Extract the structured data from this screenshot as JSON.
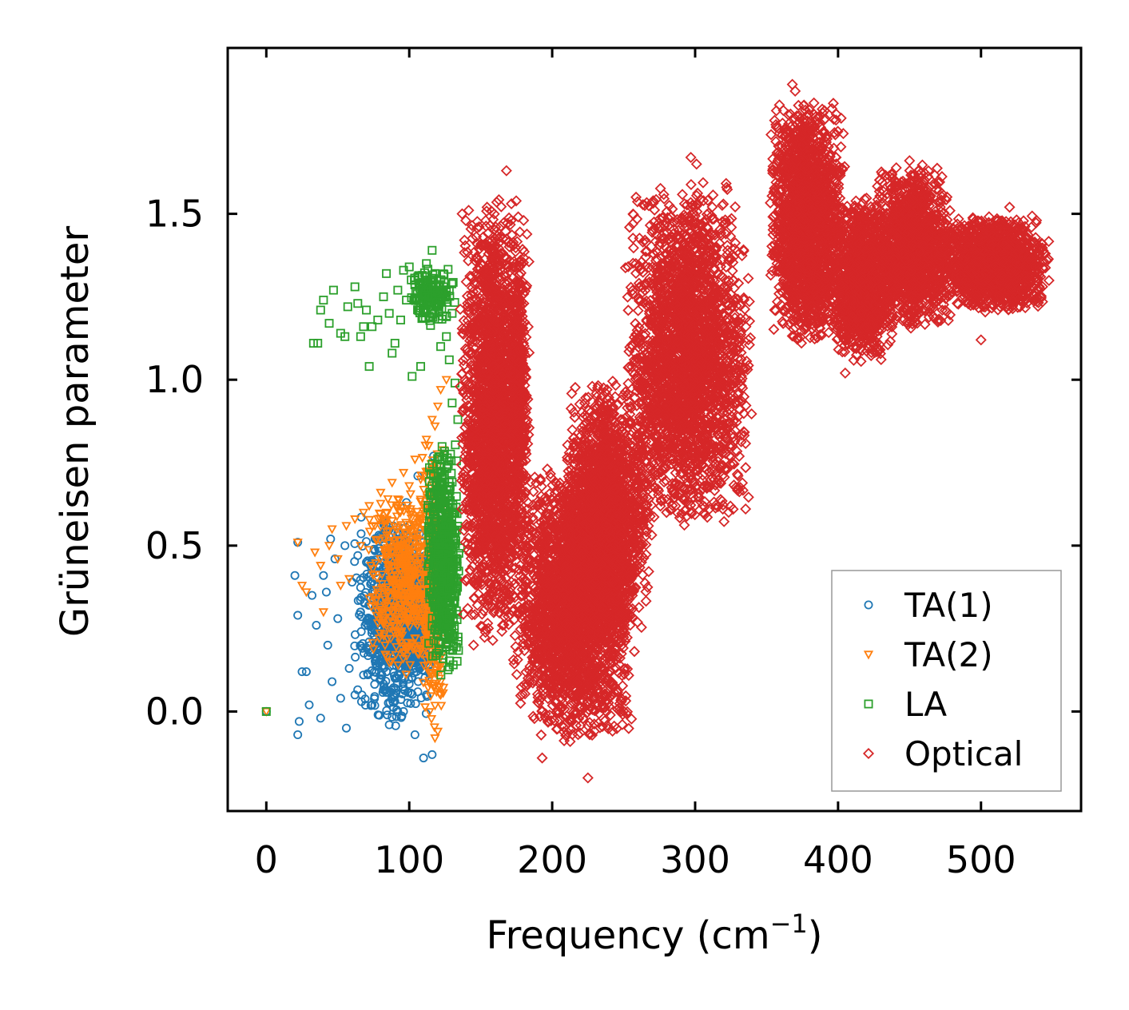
{
  "chart_data": {
    "type": "scatter",
    "xlabel": "Frequency (cm",
    "xlabel_sup": "−1",
    "xlabel_close": ")",
    "ylabel": "Grüneisen parameter",
    "xlim": [
      -27,
      570
    ],
    "ylim": [
      -0.3,
      2.0
    ],
    "xticks": [
      0,
      100,
      200,
      300,
      400,
      500
    ],
    "xtick_labels": [
      "0",
      "100",
      "200",
      "300",
      "400",
      "500"
    ],
    "yticks": [
      0.0,
      0.5,
      1.0,
      1.5
    ],
    "ytick_labels": [
      "0.0",
      "0.5",
      "1.0",
      "1.5"
    ],
    "legend_position": "lower-right",
    "series": [
      {
        "name": "TA(1)",
        "color": "#1f77b4",
        "marker": "circle",
        "points": [
          [
            0,
            0.0
          ],
          [
            22,
            0.51
          ],
          [
            20,
            0.41
          ],
          [
            22,
            0.29
          ],
          [
            23,
            -0.03
          ],
          [
            22,
            -0.07
          ],
          [
            25,
            0.12
          ],
          [
            28,
            0.12
          ],
          [
            30,
            0.02
          ],
          [
            32,
            0.35
          ],
          [
            35,
            0.26
          ],
          [
            38,
            -0.02
          ],
          [
            40,
            0.41
          ],
          [
            42,
            0.36
          ],
          [
            43,
            0.2
          ],
          [
            45,
            0.52
          ],
          [
            46,
            0.09
          ],
          [
            48,
            0.46
          ],
          [
            50,
            0.28
          ],
          [
            52,
            0.04
          ],
          [
            55,
            0.5
          ],
          [
            56,
            -0.05
          ],
          [
            58,
            0.13
          ],
          [
            60,
            0.39
          ],
          [
            62,
            0.05
          ],
          [
            64,
            0.47
          ],
          [
            66,
            0.3
          ],
          [
            68,
            0.11
          ],
          [
            70,
            0.45
          ],
          [
            72,
            0.21
          ],
          [
            74,
            0.02
          ],
          [
            76,
            0.52
          ],
          [
            78,
            0.38
          ],
          [
            80,
            0.16
          ],
          [
            82,
            0.57
          ],
          [
            84,
            0.27
          ],
          [
            86,
            -0.04
          ],
          [
            88,
            0.45
          ],
          [
            90,
            0.1
          ],
          [
            92,
            0.54
          ],
          [
            94,
            0.33
          ],
          [
            96,
            0.0
          ],
          [
            98,
            0.63
          ],
          [
            100,
            0.21
          ],
          [
            102,
            0.46
          ],
          [
            104,
            -0.07
          ],
          [
            106,
            0.71
          ],
          [
            108,
            0.3
          ],
          [
            110,
            -0.14
          ],
          [
            112,
            0.64
          ],
          [
            114,
            0.14
          ],
          [
            116,
            -0.13
          ],
          [
            117,
            0.77
          ],
          [
            118,
            0.42
          ],
          [
            115,
            0.26
          ],
          [
            112,
            0.05
          ],
          [
            105,
            0.37
          ],
          [
            95,
            0.24
          ],
          [
            85,
            0.34
          ],
          [
            75,
            0.25
          ]
        ],
        "clusters": [
          {
            "x": [
              60,
              118
            ],
            "y": [
              -0.05,
              0.6
            ],
            "n": 700
          },
          {
            "x": [
              85,
              118
            ],
            "y": [
              0.1,
              0.5
            ],
            "n": 500
          }
        ]
      },
      {
        "name": "TA(2)",
        "color": "#ff7f0e",
        "marker": "triangle-down",
        "points": [
          [
            0,
            0.0
          ],
          [
            22,
            0.51
          ],
          [
            25,
            0.38
          ],
          [
            28,
            0.36
          ],
          [
            34,
            0.48
          ],
          [
            38,
            0.44
          ],
          [
            40,
            0.3
          ],
          [
            44,
            0.5
          ],
          [
            46,
            0.55
          ],
          [
            50,
            0.46
          ],
          [
            52,
            0.38
          ],
          [
            56,
            0.56
          ],
          [
            58,
            0.4
          ],
          [
            62,
            0.58
          ],
          [
            66,
            0.5
          ],
          [
            68,
            0.6
          ],
          [
            72,
            0.62
          ],
          [
            76,
            0.56
          ],
          [
            80,
            0.66
          ],
          [
            84,
            0.6
          ],
          [
            88,
            0.69
          ],
          [
            92,
            0.64
          ],
          [
            96,
            0.72
          ],
          [
            100,
            0.68
          ],
          [
            104,
            0.76
          ],
          [
            108,
            0.7
          ],
          [
            112,
            0.82
          ],
          [
            116,
            0.88
          ],
          [
            118,
            0.86
          ],
          [
            120,
            0.92
          ],
          [
            122,
            0.97
          ],
          [
            126,
            1.0
          ],
          [
            122,
            0.05
          ],
          [
            120,
            -0.06
          ],
          [
            118,
            -0.08
          ],
          [
            121,
            0.1
          ],
          [
            119,
            0.3
          ]
        ],
        "clusters": [
          {
            "x": [
              70,
              125
            ],
            "y": [
              0.1,
              0.7
            ],
            "n": 500
          },
          {
            "x": [
              108,
              126
            ],
            "y": [
              -0.08,
              0.85
            ],
            "n": 300
          }
        ]
      },
      {
        "name": "LA",
        "color": "#2ca02c",
        "marker": "square",
        "points": [
          [
            0,
            0.0
          ],
          [
            33,
            1.11
          ],
          [
            36,
            1.11
          ],
          [
            38,
            1.21
          ],
          [
            40,
            1.24
          ],
          [
            44,
            1.17
          ],
          [
            47,
            1.27
          ],
          [
            52,
            1.14
          ],
          [
            55,
            1.13
          ],
          [
            57,
            1.22
          ],
          [
            62,
            1.28
          ],
          [
            64,
            1.23
          ],
          [
            66,
            1.13
          ],
          [
            68,
            1.16
          ],
          [
            70,
            1.21
          ],
          [
            72,
            1.04
          ],
          [
            74,
            1.16
          ],
          [
            78,
            1.18
          ],
          [
            82,
            1.25
          ],
          [
            84,
            1.32
          ],
          [
            86,
            1.2
          ],
          [
            88,
            1.08
          ],
          [
            90,
            1.11
          ],
          [
            92,
            1.27
          ],
          [
            94,
            1.18
          ],
          [
            96,
            1.33
          ],
          [
            98,
            1.24
          ],
          [
            100,
            1.34
          ],
          [
            102,
            1.01
          ],
          [
            104,
            1.24
          ],
          [
            106,
            1.31
          ],
          [
            108,
            1.04
          ],
          [
            110,
            1.27
          ],
          [
            112,
            1.35
          ],
          [
            114,
            1.19
          ],
          [
            116,
            1.39
          ],
          [
            118,
            1.32
          ],
          [
            120,
            1.22
          ],
          [
            122,
            1.1
          ],
          [
            124,
            1.28
          ],
          [
            126,
            1.13
          ],
          [
            128,
            1.06
          ],
          [
            130,
            0.93
          ],
          [
            132,
            0.99
          ],
          [
            134,
            0.88
          ],
          [
            130,
            1.2
          ],
          [
            126,
            1.19
          ]
        ],
        "clusters": [
          {
            "x": [
              112,
              136
            ],
            "y": [
              0.1,
              0.82
            ],
            "n": 600
          },
          {
            "x": [
              100,
              132
            ],
            "y": [
              1.15,
              1.35
            ],
            "n": 150
          }
        ]
      },
      {
        "name": "Optical",
        "color": "#d62728",
        "marker": "diamond",
        "points": [
          [
            137,
            1.5
          ],
          [
            145,
            0.2
          ],
          [
            160,
            0.56
          ],
          [
            168,
            1.63
          ],
          [
            170,
            0.6
          ],
          [
            172,
            0.95
          ],
          [
            180,
            1.48
          ],
          [
            185,
            0.5
          ],
          [
            193,
            -0.14
          ],
          [
            208,
            0.6
          ],
          [
            218,
            0.3
          ],
          [
            225,
            -0.2
          ],
          [
            228,
            0.98
          ],
          [
            230,
            0.92
          ],
          [
            258,
            1.08
          ],
          [
            280,
            0.6
          ],
          [
            297,
            1.67
          ],
          [
            301,
            1.65
          ],
          [
            310,
            0.61
          ],
          [
            322,
            1.58
          ],
          [
            326,
            0.8
          ],
          [
            368,
            1.89
          ],
          [
            370,
            1.87
          ],
          [
            390,
            1.65
          ],
          [
            400,
            1.18
          ],
          [
            405,
            1.02
          ],
          [
            440,
            1.6
          ],
          [
            450,
            1.66
          ],
          [
            470,
            1.18
          ],
          [
            485,
            1.45
          ],
          [
            500,
            1.12
          ],
          [
            520,
            1.52
          ],
          [
            545,
            1.38
          ]
        ],
        "clusters": [
          {
            "x": [
              135,
              185
            ],
            "y": [
              0.2,
              1.55
            ],
            "n": 2400
          },
          {
            "x": [
              170,
              182
            ],
            "y": [
              0.6,
              1.45
            ],
            "n": 300
          },
          {
            "x": [
              172,
              258
            ],
            "y": [
              -0.1,
              0.75
            ],
            "n": 2400
          },
          {
            "x": [
              208,
              270
            ],
            "y": [
              0.2,
              1.0
            ],
            "n": 1800
          },
          {
            "x": [
              250,
              340
            ],
            "y": [
              0.55,
              1.6
            ],
            "n": 2600
          },
          {
            "x": [
              352,
              405
            ],
            "y": [
              1.1,
              1.85
            ],
            "n": 2000
          },
          {
            "x": [
              395,
              440
            ],
            "y": [
              1.05,
              1.55
            ],
            "n": 1200
          },
          {
            "x": [
              425,
              480
            ],
            "y": [
              1.15,
              1.65
            ],
            "n": 1400
          },
          {
            "x": [
              470,
              548
            ],
            "y": [
              1.2,
              1.5
            ],
            "n": 1500
          }
        ]
      }
    ]
  }
}
